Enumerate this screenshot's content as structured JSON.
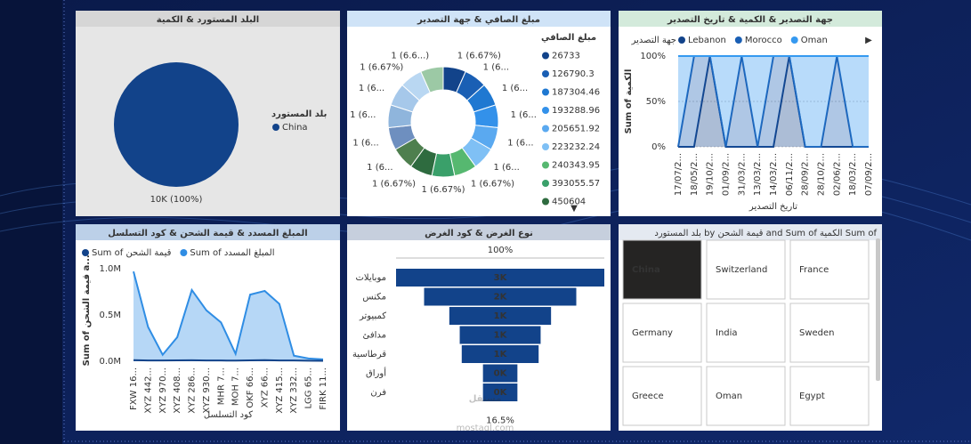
{
  "watermark": {
    "main": "مستقل",
    "sub": "mostaql.com"
  },
  "chart_data": [
    {
      "type": "pie",
      "title": "البلد المستورد & الكمية",
      "legend_title": "بلد المستورد",
      "categories": [
        "China"
      ],
      "values": [
        10000
      ],
      "value_labels": [
        "10K (100%)"
      ],
      "colors": [
        "#12438a"
      ]
    },
    {
      "type": "donut",
      "title": "مبلغ الصافي & جهة التصدير",
      "legend_title": "مبلغ الصافي",
      "categories": [
        "26733",
        "126790.3",
        "187304.46",
        "193288.96",
        "205651.92",
        "223232.24",
        "240343.95",
        "393055.57",
        "450604",
        null,
        null,
        null,
        null,
        null,
        null
      ],
      "values": [
        1,
        1,
        1,
        1,
        1,
        1,
        1,
        1,
        1,
        1,
        1,
        1,
        1,
        1,
        1
      ],
      "value_labels": [
        "1 (6.67%)",
        "1 (6...",
        "1 (6...",
        "1 (6...",
        "1 (6...",
        "1 (6...",
        "1 (6.67%)",
        "1 (6.67%)",
        "1 (6.67%)",
        "1 (6...",
        "1 (6...",
        "1 (6...",
        "1 (6...",
        "1 (6.67%)",
        "1 (6.6...)"
      ],
      "colors": [
        "#12438a",
        "#1a5fb4",
        "#1f78d1",
        "#3391ea",
        "#5aa9f0",
        "#7fc0f5",
        "#56b870",
        "#3aa06a",
        "#2e6b3f",
        "#4e7f4e",
        "#6e8fbf",
        "#8fb5dc",
        "#a6c8ea",
        "#b9d7f2",
        "#9cc9a5"
      ]
    },
    {
      "type": "area",
      "stacked": true,
      "title": "جهة التصدير & الكمية & تاريخ التصدير",
      "legend_title": "جهة التصدير",
      "x_label": "تاريخ التصدير",
      "y_label": "Sum of الكمية",
      "categories": [
        "17/07/2...",
        "18/05/2...",
        "19/10/2...",
        "01/09/2...",
        "31/03/2...",
        "13/03/2...",
        "14/03/2...",
        "06/11/2...",
        "28/09/2...",
        "28/10/2...",
        "02/06/2...",
        "18/03/2...",
        "07/09/2..."
      ],
      "series": [
        {
          "name": "Lebanon",
          "color": "#12438a",
          "values": [
            0,
            0,
            100,
            0,
            0,
            0,
            0,
            100,
            0,
            0,
            0,
            0,
            0
          ]
        },
        {
          "name": "Morocco",
          "color": "#1a5fb4",
          "values": [
            0,
            100,
            0,
            0,
            100,
            0,
            100,
            0,
            0,
            0,
            100,
            0,
            0
          ]
        },
        {
          "name": "Oman",
          "color": "#3599f0",
          "values": [
            100,
            0,
            0,
            100,
            0,
            100,
            0,
            0,
            100,
            100,
            0,
            100,
            100
          ]
        }
      ],
      "ylim": [
        0,
        100
      ],
      "yticks": [
        {
          "value": 0,
          "label": "0%"
        },
        {
          "value": 50,
          "label": "50%"
        },
        {
          "value": 100,
          "label": "100%"
        }
      ],
      "grid": true
    },
    {
      "type": "area",
      "stacked": false,
      "title": "المبلغ المسدد & قيمة الشحن & كود التسلسل",
      "x_label": "كود التسلسل",
      "y_label": "Sum of قيمة الشحن a...",
      "categories": [
        "FXW 16...",
        "XYZ 442...",
        "XYZ 970...",
        "XYZ 408...",
        "XYZ 286...",
        "XYZ 930...",
        "MHR 7...",
        "MOH 7...",
        "OKF 66...",
        "XYZ 66...",
        "XYZ 415...",
        "XYZ 332...",
        "LGG 65...",
        "FIRK 11..."
      ],
      "series": [
        {
          "name": "Sum of قيمة الشحن",
          "color": "#12438a",
          "values": [
            12000,
            9000,
            8000,
            10000,
            11000,
            9000,
            8000,
            7000,
            10000,
            12000,
            9000,
            8000,
            6000,
            5000
          ]
        },
        {
          "name": "Sum of المبلغ المسدد",
          "color": "#2f8de4",
          "values": [
            970000,
            370000,
            70000,
            260000,
            770000,
            550000,
            420000,
            80000,
            720000,
            760000,
            620000,
            60000,
            30000,
            20000
          ]
        }
      ],
      "ylim": [
        0,
        1100000
      ],
      "yticks": [
        {
          "value": 0,
          "label": "0.0M"
        },
        {
          "value": 500000,
          "label": "0.5M"
        },
        {
          "value": 1000000,
          "label": "1.0M"
        }
      ],
      "grid": false
    },
    {
      "type": "funnel",
      "title": "نوع الغرض & كود الغرض",
      "top_label": "100%",
      "bottom_label": "16.5%",
      "categories": [
        "موبايلات",
        "مكنس",
        "كمبيوتر",
        "مدافئ",
        "قرطاسية",
        "أوراق",
        "فرن"
      ],
      "values": [
        2600,
        1900,
        1270,
        1010,
        960,
        430,
        430
      ],
      "value_labels": [
        "3K",
        "2K",
        "1K",
        "1K",
        "1K",
        "0K",
        "0K"
      ],
      "color": "#12438a"
    }
  ],
  "slicer": {
    "title": "Sum of الكمية and Sum of قيمة الشحن by بلد المستورد",
    "items": [
      "China",
      "Switzerland",
      "France",
      "Germany",
      "India",
      "Sweden",
      "Greece",
      "Oman",
      "Egypt"
    ],
    "selected_index": 0
  }
}
